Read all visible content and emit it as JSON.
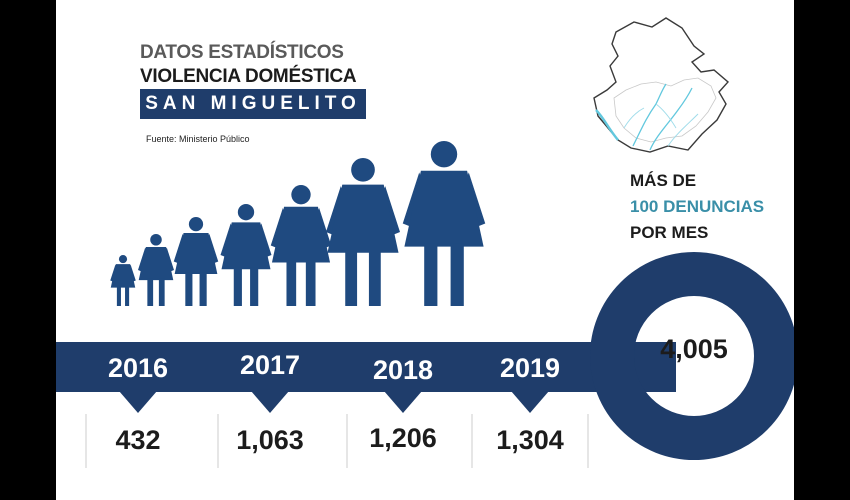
{
  "header": {
    "line1": "DATOS ESTADÍSTICOS",
    "line2": "VIOLENCIA DOMÉSTICA",
    "place": "SAN MIGUELITO",
    "source": "Fuente: Ministerio Público"
  },
  "note": {
    "line1": "MÁS DE",
    "line2": "100 DENUNCIAS",
    "line3": "POR MES"
  },
  "total": "4,005",
  "colors": {
    "navy": "#1f3d6b",
    "figure": "#1f4a80",
    "accent": "#3a8fa8"
  },
  "chart_data": {
    "type": "table",
    "categories": [
      "2016",
      "2017",
      "2018",
      "2019"
    ],
    "values": [
      432,
      1063,
      1206,
      1304
    ],
    "labels": [
      "432",
      "1,063",
      "1,206",
      "1,304"
    ]
  }
}
